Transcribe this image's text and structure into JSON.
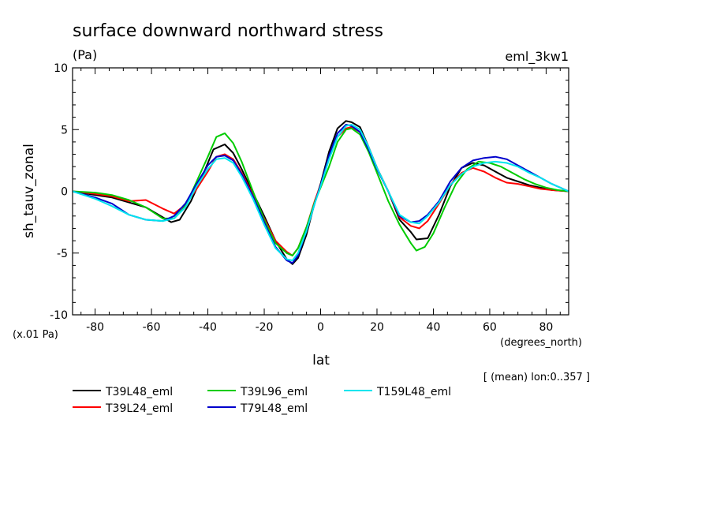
{
  "chart_data": {
    "type": "line",
    "title": "surface downward northward stress",
    "units": "(Pa)",
    "run_label": "eml_3kw1",
    "xlabel": "lat",
    "x_units": "(degrees_north)",
    "ylabel": "sh_tauv_zonal",
    "y_scale_note": "(x.01 Pa)",
    "averaging_note": "[ (mean) lon:0..357 ]",
    "xlim": [
      -88,
      88
    ],
    "ylim": [
      -10,
      10
    ],
    "x_ticks": [
      -80,
      -60,
      -40,
      -20,
      0,
      20,
      40,
      60,
      80
    ],
    "x_tick_labels": [
      "-80",
      "-60",
      "-40",
      "-20",
      "0",
      "20",
      "40",
      "60",
      "80"
    ],
    "y_ticks": [
      -10,
      -5,
      0,
      5,
      10
    ],
    "y_tick_labels": [
      "-10",
      "-5",
      "0",
      "5",
      "10"
    ],
    "grid": false,
    "legend_position": "bottom",
    "series": [
      {
        "name": "T39L48_eml",
        "color": "#000000",
        "x": [
          -88,
          -80,
          -74,
          -68,
          -62,
          -56,
          -53,
          -50,
          -46,
          -42,
          -38,
          -34,
          -31,
          -28,
          -24,
          -20,
          -16,
          -12,
          -10,
          -8,
          -5,
          -2,
          0,
          3,
          6,
          9,
          11,
          14,
          17,
          20,
          24,
          28,
          32,
          34,
          38,
          42,
          46,
          50,
          54,
          58,
          62,
          66,
          70,
          74,
          78,
          82,
          88
        ],
        "y": [
          0,
          -0.3,
          -0.5,
          -0.9,
          -1.3,
          -2.1,
          -2.5,
          -2.3,
          -0.8,
          1.2,
          3.4,
          3.8,
          3.1,
          1.8,
          -0.1,
          -2.0,
          -4.0,
          -5.5,
          -5.9,
          -5.4,
          -3.5,
          -0.8,
          0.6,
          3.2,
          5.1,
          5.7,
          5.6,
          5.2,
          3.6,
          1.9,
          0,
          -2.3,
          -3.3,
          -3.9,
          -3.8,
          -1.9,
          0.4,
          1.9,
          2.3,
          2.1,
          1.6,
          1.1,
          0.8,
          0.5,
          0.3,
          0.1,
          0
        ]
      },
      {
        "name": "T39L24_eml",
        "color": "#ff0000",
        "x": [
          -88,
          -80,
          -74,
          -68,
          -62,
          -56,
          -52,
          -48,
          -44,
          -40,
          -37,
          -34,
          -31,
          -28,
          -24,
          -20,
          -16,
          -12,
          -10,
          -8,
          -5,
          -2,
          0,
          3,
          6,
          9,
          11,
          14,
          17,
          20,
          24,
          28,
          32,
          35,
          38,
          42,
          46,
          50,
          54,
          58,
          62,
          66,
          70,
          74,
          78,
          82,
          88
        ],
        "y": [
          0,
          -0.2,
          -0.4,
          -0.8,
          -0.7,
          -1.4,
          -1.8,
          -1.1,
          0.2,
          1.6,
          2.8,
          3.0,
          2.6,
          1.5,
          -0.3,
          -2.2,
          -4.0,
          -4.9,
          -5.2,
          -4.6,
          -2.9,
          -0.7,
          0.5,
          2.8,
          4.4,
          5.1,
          5.2,
          4.8,
          3.6,
          1.9,
          0,
          -2.1,
          -2.8,
          -3.0,
          -2.4,
          -1.0,
          0.5,
          1.5,
          1.9,
          1.6,
          1.1,
          0.7,
          0.6,
          0.4,
          0.2,
          0.1,
          0
        ]
      },
      {
        "name": "T39L96_eml",
        "color": "#00cc00",
        "x": [
          -88,
          -80,
          -74,
          -68,
          -62,
          -56,
          -52,
          -48,
          -44,
          -40,
          -37,
          -34,
          -31,
          -28,
          -24,
          -20,
          -16,
          -12,
          -10,
          -8,
          -5,
          -2,
          0,
          3,
          6,
          9,
          11,
          14,
          17,
          20,
          24,
          28,
          32,
          34,
          37,
          40,
          44,
          48,
          52,
          56,
          60,
          64,
          68,
          72,
          76,
          80,
          84,
          88
        ],
        "y": [
          0,
          -0.1,
          -0.3,
          -0.7,
          -1.3,
          -2.2,
          -2.2,
          -1.2,
          0.8,
          2.8,
          4.4,
          4.7,
          3.9,
          2.4,
          0,
          -2.3,
          -4.2,
          -5.0,
          -5.2,
          -4.6,
          -2.9,
          -0.8,
          0.3,
          2.0,
          4.0,
          5.0,
          5.1,
          4.6,
          3.2,
          1.5,
          -0.8,
          -2.7,
          -4.2,
          -4.8,
          -4.5,
          -3.4,
          -1.3,
          0.6,
          1.8,
          2.4,
          2.3,
          2.0,
          1.5,
          1.0,
          0.6,
          0.3,
          0.1,
          0
        ]
      },
      {
        "name": "T79L48_eml",
        "color": "#0000cc",
        "x": [
          -88,
          -80,
          -74,
          -68,
          -62,
          -56,
          -52,
          -48,
          -44,
          -40,
          -37,
          -34,
          -31,
          -28,
          -24,
          -20,
          -16,
          -12,
          -10,
          -8,
          -5,
          -2,
          0,
          3,
          6,
          9,
          11,
          14,
          17,
          20,
          24,
          28,
          32,
          35,
          38,
          42,
          46,
          50,
          54,
          58,
          62,
          66,
          70,
          74,
          78,
          82,
          88
        ],
        "y": [
          0,
          -0.5,
          -1.0,
          -1.9,
          -2.3,
          -2.4,
          -2.0,
          -1.0,
          0.6,
          2.1,
          2.8,
          2.9,
          2.5,
          1.4,
          -0.4,
          -2.5,
          -4.5,
          -5.6,
          -5.8,
          -5.2,
          -3.2,
          -0.9,
          0.5,
          2.9,
          4.7,
          5.4,
          5.3,
          4.8,
          3.4,
          1.8,
          0,
          -2.0,
          -2.5,
          -2.4,
          -1.9,
          -0.8,
          0.8,
          1.9,
          2.5,
          2.7,
          2.8,
          2.6,
          2.1,
          1.6,
          1.1,
          0.6,
          0
        ]
      },
      {
        "name": "T159L48_eml",
        "color": "#00e5ee",
        "x": [
          -88,
          -80,
          -74,
          -68,
          -62,
          -56,
          -52,
          -48,
          -44,
          -40,
          -37,
          -34,
          -31,
          -28,
          -24,
          -20,
          -16,
          -12,
          -10,
          -8,
          -5,
          -2,
          0,
          3,
          6,
          9,
          11,
          14,
          17,
          20,
          24,
          28,
          32,
          35,
          38,
          42,
          46,
          50,
          54,
          58,
          62,
          66,
          70,
          74,
          78,
          82,
          88
        ],
        "y": [
          0,
          -0.6,
          -1.2,
          -1.9,
          -2.3,
          -2.4,
          -2.2,
          -1.3,
          0.4,
          1.8,
          2.6,
          2.7,
          2.3,
          1.2,
          -0.6,
          -2.7,
          -4.6,
          -5.5,
          -5.6,
          -5.0,
          -3.2,
          -0.9,
          0.4,
          2.6,
          4.4,
          5.3,
          5.4,
          5.0,
          3.6,
          1.9,
          0,
          -1.9,
          -2.5,
          -2.6,
          -2.0,
          -0.9,
          0.5,
          1.4,
          2.0,
          2.3,
          2.4,
          2.3,
          2.0,
          1.5,
          1.1,
          0.6,
          0
        ]
      }
    ]
  }
}
